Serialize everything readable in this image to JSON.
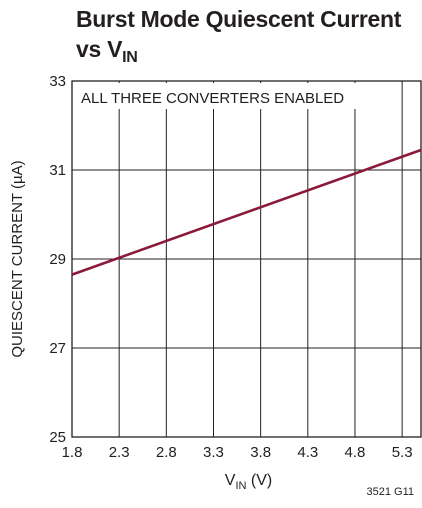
{
  "chart_data": {
    "type": "line",
    "title_line1": "Burst Mode Quiescent Current",
    "title_line2_prefix": "vs V",
    "title_line2_sub": "IN",
    "annotation": "ALL THREE CONVERTERS ENABLED",
    "xlabel_main": "V",
    "xlabel_sub": "IN",
    "xlabel_unit": " (V)",
    "ylabel": "QUIESCENT CURRENT (µA)",
    "xlim": [
      1.8,
      5.5
    ],
    "ylim": [
      25,
      33
    ],
    "x_ticks": [
      "1.8",
      "2.3",
      "2.8",
      "3.3",
      "3.8",
      "4.3",
      "4.8",
      "5.3"
    ],
    "y_ticks": [
      "25",
      "27",
      "29",
      "31",
      "33"
    ],
    "x_tick_values": [
      1.8,
      2.3,
      2.8,
      3.3,
      3.8,
      4.3,
      4.8,
      5.3
    ],
    "y_tick_values": [
      25,
      27,
      29,
      31,
      33
    ],
    "grid": true,
    "series": [
      {
        "x": [
          1.8,
          5.5
        ],
        "y": [
          28.65,
          31.45
        ],
        "color": "#8b1a3a"
      }
    ],
    "figure_id": "3521 G11"
  }
}
